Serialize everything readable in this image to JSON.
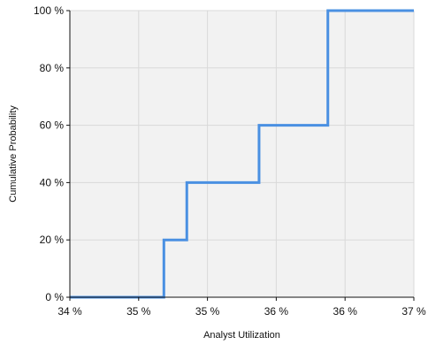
{
  "chart_data": {
    "type": "line",
    "step": true,
    "title": "",
    "xlabel": "Analyst Utilization",
    "ylabel": "Cumulative Probability",
    "xlim": [
      34.0,
      37.0
    ],
    "ylim": [
      0,
      100
    ],
    "x_ticks": [
      34.0,
      34.6,
      35.2,
      35.8,
      36.4,
      37.0
    ],
    "x_tick_labels": [
      "34 %",
      "35 %",
      "35 %",
      "36 %",
      "36 %",
      "37 %"
    ],
    "y_ticks": [
      0,
      20,
      40,
      60,
      80,
      100
    ],
    "y_tick_labels": [
      "0 %",
      "20 %",
      "40 %",
      "60 %",
      "80 %",
      "100 %"
    ],
    "grid": true,
    "background_color": "#f2f2f2",
    "grid_color": "#d9d9d9",
    "series": [
      {
        "color": "#4a90e2",
        "x": [
          34.0,
          34.82,
          34.82,
          35.02,
          35.02,
          35.65,
          35.65,
          36.25,
          36.25,
          37.0
        ],
        "y": [
          0,
          0,
          20,
          20,
          40,
          40,
          60,
          60,
          100,
          100
        ]
      }
    ]
  }
}
